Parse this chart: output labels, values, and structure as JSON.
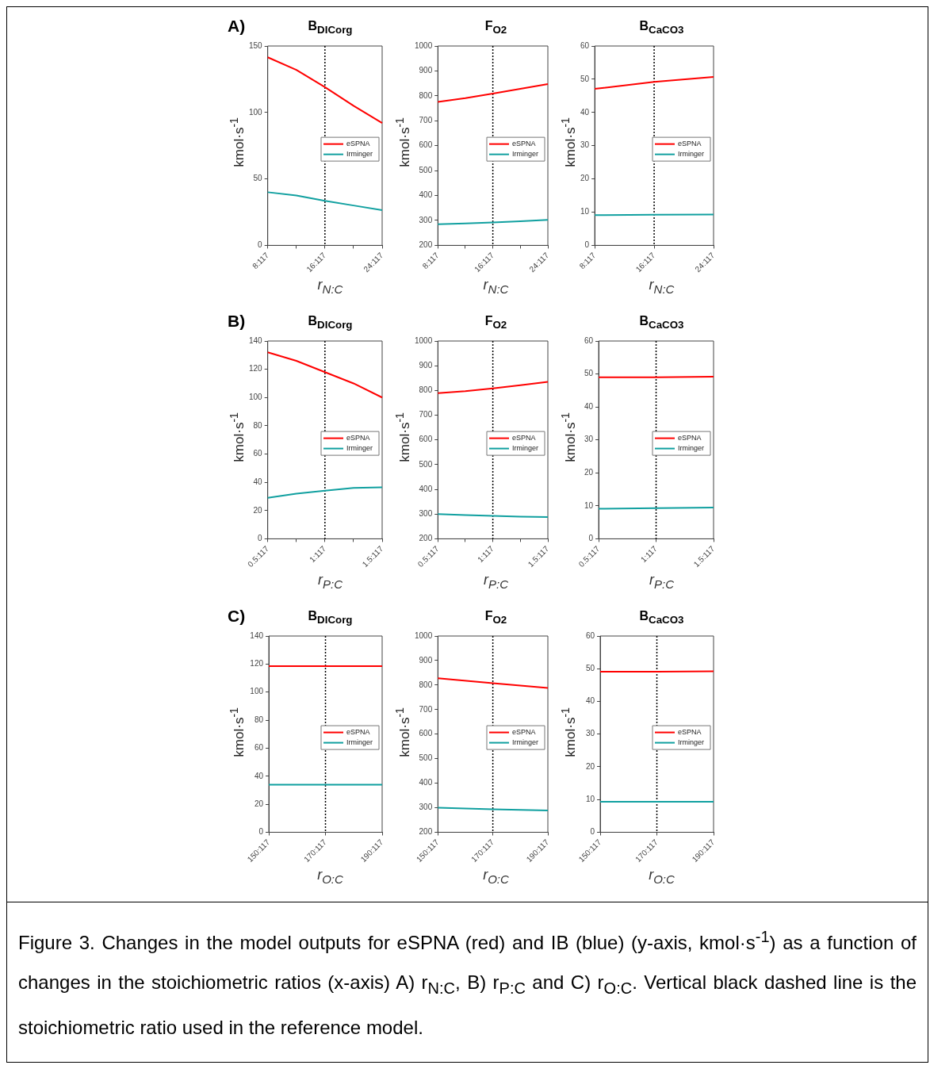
{
  "chart_data": [
    {
      "type": "line",
      "title": "B$_{DICorg}$",
      "annotations": [
        "A)"
      ],
      "xlabel": "r$_{N:C}$",
      "ylabel": "kmol·s$^{-1}$",
      "categories": [
        "8:117",
        null,
        "16:117",
        null,
        "24:117"
      ],
      "ylim": [
        0,
        150
      ],
      "yticks": [
        0,
        50,
        100,
        150
      ],
      "legend": "right",
      "ref_lines": [
        {
          "axis": "x",
          "value": "16:117",
          "label": null,
          "color": "#000000",
          "line_style": "dotted"
        }
      ],
      "series": [
        {
          "name": "eSPNA",
          "color": "#ff0000",
          "values": [
            141.5,
            132,
            119,
            105,
            92
          ]
        },
        {
          "name": "Irminger",
          "color": "#11a0a0",
          "values": [
            40,
            37.5,
            33.5,
            30,
            26.5
          ]
        }
      ]
    },
    {
      "type": "line",
      "title": "F$_{O2}$",
      "xlabel": "r$_{N:C}$",
      "ylabel": "kmol·s$^{-1}$",
      "categories": [
        "8:117",
        null,
        "16:117",
        null,
        "24:117"
      ],
      "ylim": [
        200,
        1000
      ],
      "yticks": [
        200,
        300,
        400,
        500,
        600,
        700,
        800,
        900,
        1000
      ],
      "legend": "right",
      "ref_lines": [
        {
          "axis": "x",
          "value": "16:117",
          "label": null,
          "color": "#000000",
          "line_style": "dotted"
        }
      ],
      "series": [
        {
          "name": "eSPNA",
          "color": "#ff0000",
          "values": [
            776,
            791,
            809,
            828,
            847
          ]
        },
        {
          "name": "Irminger",
          "color": "#11a0a0",
          "values": [
            285,
            288,
            292,
            297,
            302
          ]
        }
      ]
    },
    {
      "type": "line",
      "title": "B$_{CaCO3}$",
      "xlabel": "r$_{N:C}$",
      "ylabel": "kmol·s$^{-1}$",
      "categories": [
        "8:117",
        "16:117",
        "24:117"
      ],
      "ylim": [
        0,
        60
      ],
      "yticks": [
        0,
        10,
        20,
        30,
        40,
        50,
        60
      ],
      "legend": "right",
      "ref_lines": [
        {
          "axis": "x",
          "value": "16:117",
          "label": null,
          "color": "#000000",
          "line_style": "dotted"
        }
      ],
      "series": [
        {
          "name": "eSPNA",
          "color": "#ff0000",
          "values": [
            47.1,
            49.2,
            50.7
          ]
        },
        {
          "name": "Irminger",
          "color": "#11a0a0",
          "values": [
            9.1,
            9.2,
            9.3
          ]
        }
      ]
    },
    {
      "type": "line",
      "title": "B$_{DICorg}$",
      "annotations": [
        "B)"
      ],
      "xlabel": "r$_{P:C}$",
      "ylabel": "kmol·s$^{-1}$",
      "categories": [
        "0.5:117",
        null,
        "1:117",
        null,
        "1.5:117"
      ],
      "ylim": [
        0,
        140
      ],
      "yticks": [
        0,
        20,
        40,
        60,
        80,
        100,
        120,
        140
      ],
      "legend": "right",
      "ref_lines": [
        {
          "axis": "x",
          "value": "1:117",
          "label": null,
          "color": "#000000",
          "line_style": "dotted"
        }
      ],
      "series": [
        {
          "name": "eSPNA",
          "color": "#ff0000",
          "values": [
            132,
            126,
            118,
            110,
            100
          ]
        },
        {
          "name": "Irminger",
          "color": "#11a0a0",
          "values": [
            29,
            32,
            34,
            36,
            36.5
          ]
        }
      ]
    },
    {
      "type": "line",
      "title": "F$_{O2}$",
      "xlabel": "r$_{P:C}$",
      "ylabel": "kmol·s$^{-1}$",
      "categories": [
        "0.5:117",
        null,
        "1:117",
        null,
        "1.5:117"
      ],
      "ylim": [
        200,
        1000
      ],
      "yticks": [
        200,
        300,
        400,
        500,
        600,
        700,
        800,
        900,
        1000
      ],
      "legend": "right",
      "ref_lines": [
        {
          "axis": "x",
          "value": "1:117",
          "label": null,
          "color": "#000000",
          "line_style": "dotted"
        }
      ],
      "series": [
        {
          "name": "eSPNA",
          "color": "#ff0000",
          "values": [
            789,
            797,
            808,
            821,
            835
          ]
        },
        {
          "name": "Irminger",
          "color": "#11a0a0",
          "values": [
            300,
            296,
            293,
            290,
            288
          ]
        }
      ]
    },
    {
      "type": "line",
      "title": "B$_{CaCO3}$",
      "xlabel": "r$_{P:C}$",
      "ylabel": "kmol·s$^{-1}$",
      "categories": [
        "0.5:117",
        "1:117",
        "1.5:117"
      ],
      "ylim": [
        0,
        60
      ],
      "yticks": [
        0,
        10,
        20,
        30,
        40,
        50,
        60
      ],
      "legend": "right",
      "ref_lines": [
        {
          "axis": "x",
          "value": "1:117",
          "label": null,
          "color": "#000000",
          "line_style": "dotted"
        }
      ],
      "series": [
        {
          "name": "eSPNA",
          "color": "#ff0000",
          "values": [
            49,
            49,
            49.2
          ]
        },
        {
          "name": "Irminger",
          "color": "#11a0a0",
          "values": [
            9.1,
            9.3,
            9.5
          ]
        }
      ]
    },
    {
      "type": "line",
      "title": "B$_{DICorg}$",
      "annotations": [
        "C)"
      ],
      "xlabel": "r$_{O:C}$",
      "ylabel": "kmol·s$^{-1}$",
      "categories": [
        "150:117",
        "170:117",
        "190:117"
      ],
      "ylim": [
        0,
        140
      ],
      "yticks": [
        0,
        20,
        40,
        60,
        80,
        100,
        120,
        140
      ],
      "legend": "right",
      "ref_lines": [
        {
          "axis": "x",
          "value": "170:117",
          "label": null,
          "color": "#000000",
          "line_style": "dotted"
        }
      ],
      "series": [
        {
          "name": "eSPNA",
          "color": "#ff0000",
          "values": [
            118.5,
            118.5,
            118.5
          ]
        },
        {
          "name": "Irminger",
          "color": "#11a0a0",
          "values": [
            34,
            34,
            34
          ]
        }
      ]
    },
    {
      "type": "line",
      "title": "F$_{O2}$",
      "xlabel": "r$_{O:C}$",
      "ylabel": "kmol·s$^{-1}$",
      "categories": [
        "150:117",
        "170:117",
        "190:117"
      ],
      "ylim": [
        200,
        1000
      ],
      "yticks": [
        200,
        300,
        400,
        500,
        600,
        700,
        800,
        900,
        1000
      ],
      "legend": "right",
      "ref_lines": [
        {
          "axis": "x",
          "value": "170:117",
          "label": null,
          "color": "#000000",
          "line_style": "dotted"
        }
      ],
      "series": [
        {
          "name": "eSPNA",
          "color": "#ff0000",
          "values": [
            828,
            808,
            788
          ]
        },
        {
          "name": "Irminger",
          "color": "#11a0a0",
          "values": [
            300,
            294,
            289
          ]
        }
      ]
    },
    {
      "type": "line",
      "title": "B$_{CaCO3}$",
      "xlabel": "r$_{O:C}$",
      "ylabel": "kmol·s$^{-1}$",
      "categories": [
        "150:117",
        "170:117",
        "190:117"
      ],
      "ylim": [
        0,
        60
      ],
      "yticks": [
        0,
        10,
        20,
        30,
        40,
        50,
        60
      ],
      "legend": "right",
      "ref_lines": [
        {
          "axis": "x",
          "value": "170:117",
          "label": null,
          "color": "#000000",
          "line_style": "dotted"
        }
      ],
      "series": [
        {
          "name": "eSPNA",
          "color": "#ff0000",
          "values": [
            49.1,
            49.1,
            49.2
          ]
        },
        {
          "name": "Irminger",
          "color": "#11a0a0",
          "values": [
            9.3,
            9.3,
            9.3
          ]
        }
      ]
    },
    {
      "type": "other",
      "annotations": [
        "Figure 3. Changes in the model outputs for eSPNA (red) and IB (blue) (y-axis, kmol·s$^{-1}$) as a function of changes in the stoichiometric ratios (x-axis) A) r$_{N:C}$, B) r$_{P:C}$ and C) r$_{O:C}$. Vertical black dashed line is the stoichiometric ratio used in the reference model."
      ]
    }
  ]
}
